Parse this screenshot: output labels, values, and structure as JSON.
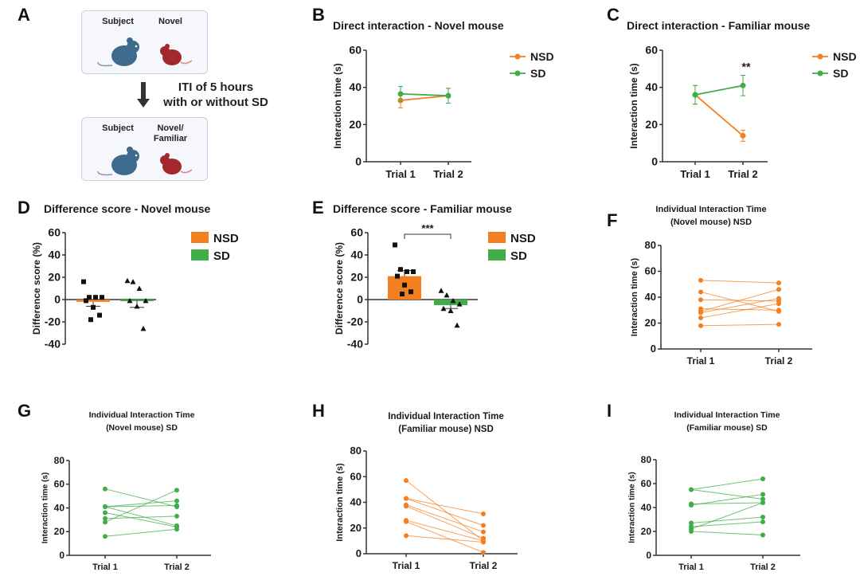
{
  "panel_letters": [
    "A",
    "B",
    "C",
    "D",
    "E",
    "F",
    "G",
    "H",
    "I"
  ],
  "schematic": {
    "trial1_subject": "Subject",
    "trial1_stimulus": "Novel",
    "iti_line1": "ITI of 5 hours",
    "iti_line2": "with or without SD",
    "trial2_subject": "Subject",
    "trial2_stimulus_line1": "Novel/",
    "trial2_stimulus_line2": "Familiar"
  },
  "colors": {
    "nsd": "#f47f20",
    "sd": "#3fae49",
    "subject_mouse": "#3e6b8c",
    "stimulus_mouse": "#a3282b"
  },
  "chart_data": [
    {
      "id": "B",
      "type": "line",
      "title": [
        "Direct interaction - Novel mouse"
      ],
      "ylabel": "Interaction time (s)",
      "ylim": [
        0,
        60
      ],
      "yticks": [
        0,
        20,
        40,
        60
      ],
      "categories": [
        "Trial 1",
        "Trial 2"
      ],
      "series": [
        {
          "name": "NSD",
          "values": [
            33,
            35.5
          ],
          "errors": [
            4,
            4
          ]
        },
        {
          "name": "SD",
          "values": [
            36.5,
            35.5
          ],
          "errors": [
            4,
            4
          ]
        }
      ],
      "annotations": []
    },
    {
      "id": "C",
      "type": "line",
      "title": [
        "Direct interaction - Familiar mouse"
      ],
      "ylabel": "Interaction time (s)",
      "ylim": [
        0,
        60
      ],
      "yticks": [
        0,
        20,
        40,
        60
      ],
      "categories": [
        "Trial 1",
        "Trial 2"
      ],
      "series": [
        {
          "name": "NSD",
          "values": [
            36,
            14
          ],
          "errors": [
            5,
            3
          ]
        },
        {
          "name": "SD",
          "values": [
            36,
            41
          ],
          "errors": [
            5,
            5.5
          ]
        }
      ],
      "annotations": [
        {
          "text": "**",
          "category": "Trial 2"
        }
      ]
    },
    {
      "id": "D",
      "type": "bar",
      "title": [
        "Difference score - Novel mouse"
      ],
      "ylabel": "Difference score (%)",
      "ylim": [
        -40,
        60
      ],
      "yticks": [
        -40,
        -20,
        0,
        20,
        40,
        60
      ],
      "categories": [
        "NSD",
        "SD"
      ],
      "series": [
        {
          "name": "NSD",
          "mean": -2,
          "sem": 4,
          "points": [
            16,
            2,
            2,
            2,
            -1,
            -7,
            -14,
            -18
          ]
        },
        {
          "name": "SD",
          "mean": -1,
          "sem": 6,
          "points": [
            17,
            16,
            10,
            -1,
            -1,
            -6,
            -26
          ]
        }
      ],
      "annotations": []
    },
    {
      "id": "E",
      "type": "bar",
      "title": [
        "Difference score - Familiar mouse"
      ],
      "ylabel": "Difference score (%)",
      "ylim": [
        -40,
        60
      ],
      "yticks": [
        -40,
        -20,
        0,
        20,
        40,
        60
      ],
      "categories": [
        "NSD",
        "SD"
      ],
      "series": [
        {
          "name": "NSD",
          "mean": 21,
          "sem": 5,
          "points": [
            49,
            27,
            25,
            25,
            21,
            13,
            7,
            5
          ]
        },
        {
          "name": "SD",
          "mean": -5,
          "sem": 3,
          "points": [
            8,
            4,
            -1,
            -4,
            -8,
            -10,
            -23
          ]
        }
      ],
      "annotations": [
        {
          "text": "***",
          "between": [
            "NSD",
            "SD"
          ]
        }
      ]
    },
    {
      "id": "F",
      "type": "paired-line",
      "title": [
        "Individual Interaction Time",
        "(Novel mouse) NSD"
      ],
      "ylabel": "Interaction time (s)",
      "ylim": [
        0,
        80
      ],
      "yticks": [
        0,
        20,
        40,
        60,
        80
      ],
      "categories": [
        "Trial 1",
        "Trial 2"
      ],
      "group": "NSD",
      "pairs": [
        [
          53,
          51
        ],
        [
          44,
          29
        ],
        [
          38,
          37
        ],
        [
          31,
          30
        ],
        [
          29,
          46
        ],
        [
          28,
          39
        ],
        [
          24,
          35
        ],
        [
          18,
          19
        ]
      ]
    },
    {
      "id": "G",
      "type": "paired-line",
      "title": [
        "Individual Interaction Time",
        "(Novel mouse) SD"
      ],
      "ylabel": "Interaction time (s)",
      "ylim": [
        0,
        80
      ],
      "yticks": [
        0,
        20,
        40,
        60,
        80
      ],
      "categories": [
        "Trial 1",
        "Trial 2"
      ],
      "group": "SD",
      "pairs": [
        [
          56,
          41
        ],
        [
          41,
          46
        ],
        [
          41,
          42
        ],
        [
          41,
          25
        ],
        [
          36,
          24
        ],
        [
          31,
          33
        ],
        [
          28,
          55
        ],
        [
          16,
          22
        ]
      ]
    },
    {
      "id": "H",
      "type": "paired-line",
      "title": [
        "Individual Interaction Time",
        "(Familiar mouse) NSD"
      ],
      "ylabel": "Interaction time (s)",
      "ylim": [
        0,
        80
      ],
      "yticks": [
        0,
        20,
        40,
        60,
        80
      ],
      "categories": [
        "Trial 1",
        "Trial 2"
      ],
      "group": "NSD",
      "pairs": [
        [
          57,
          10
        ],
        [
          43,
          31
        ],
        [
          43,
          22
        ],
        [
          38,
          17
        ],
        [
          37,
          12
        ],
        [
          26,
          10
        ],
        [
          25,
          1
        ],
        [
          14,
          9
        ]
      ]
    },
    {
      "id": "I",
      "type": "paired-line",
      "title": [
        "Individual Interaction Time",
        "(Familiar mouse) SD"
      ],
      "ylabel": "Interaction time (s)",
      "ylim": [
        0,
        80
      ],
      "yticks": [
        0,
        20,
        40,
        60,
        80
      ],
      "categories": [
        "Trial 1",
        "Trial 2"
      ],
      "group": "SD",
      "pairs": [
        [
          55,
          47
        ],
        [
          55,
          64
        ],
        [
          42,
          51
        ],
        [
          43,
          44
        ],
        [
          27,
          32
        ],
        [
          24,
          28
        ],
        [
          22,
          44
        ],
        [
          20,
          17
        ]
      ]
    }
  ]
}
